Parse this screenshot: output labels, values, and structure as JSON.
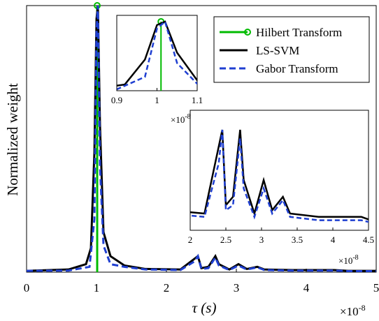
{
  "chart_data": {
    "type": "line",
    "xlabel": "τ (s)",
    "ylabel": "Normalized weight",
    "xlim": [
      0,
      5e-08
    ],
    "ylim": [
      0,
      1
    ],
    "x_ticks": [
      "0",
      "1",
      "2",
      "3",
      "4",
      "5"
    ],
    "x_exponent": "×10",
    "x_exponent_power": "-8",
    "legend": {
      "position": "top-right",
      "entries": [
        "Hilbert Transform",
        "LS-SVM",
        "Gabor Transform"
      ]
    },
    "colors": {
      "hilbert": "#00bb00",
      "lssvm": "#000000",
      "gabor": "#1f3fd1"
    },
    "series": [
      {
        "name": "Hilbert Transform",
        "style": "stem",
        "x": [
          1.01e-08
        ],
        "y": [
          1.0
        ]
      },
      {
        "name": "LS-SVM",
        "style": "solid",
        "x": [
          0,
          6e-09,
          8.5e-09,
          9.2e-09,
          9.7e-09,
          1e-08,
          1.02e-08,
          1.05e-08,
          1.1e-08,
          1.2e-08,
          1.4e-08,
          1.7e-08,
          2.2e-08,
          2.4e-08,
          2.45e-08,
          2.5e-08,
          2.6e-08,
          2.7e-08,
          2.75e-08,
          2.9e-08,
          3.03e-08,
          3.15e-08,
          3.3e-08,
          3.4e-08,
          3.8e-08,
          4.4e-08,
          4.6e-08,
          5e-08
        ],
        "y": [
          0.005,
          0.01,
          0.03,
          0.09,
          0.45,
          0.95,
          1.0,
          0.55,
          0.15,
          0.06,
          0.025,
          0.012,
          0.01,
          0.05,
          0.06,
          0.015,
          0.02,
          0.06,
          0.03,
          0.01,
          0.03,
          0.012,
          0.02,
          0.01,
          0.008,
          0.008,
          0.005,
          0.005
        ]
      },
      {
        "name": "Gabor Transform",
        "style": "dashed",
        "x": [
          0,
          6e-09,
          9e-09,
          9.7e-09,
          1e-08,
          1.02e-08,
          1.05e-08,
          1.1e-08,
          1.2e-08,
          1.4e-08,
          1.7e-08,
          2.2e-08,
          2.4e-08,
          2.45e-08,
          2.5e-08,
          2.6e-08,
          2.7e-08,
          2.75e-08,
          2.9e-08,
          3.03e-08,
          3.15e-08,
          3.3e-08,
          3.4e-08,
          3.8e-08,
          4.4e-08,
          4.6e-08,
          5e-08
        ],
        "y": [
          0.005,
          0.006,
          0.02,
          0.2,
          0.9,
          1.0,
          0.4,
          0.1,
          0.03,
          0.02,
          0.01,
          0.008,
          0.04,
          0.06,
          0.012,
          0.015,
          0.055,
          0.025,
          0.008,
          0.025,
          0.01,
          0.018,
          0.008,
          0.006,
          0.006,
          0.004,
          0.004
        ]
      }
    ],
    "insets": [
      {
        "xlim": [
          9e-09,
          1.1e-08
        ],
        "x_ticks": [
          "0.9",
          "1",
          "1.1"
        ],
        "x_exponent": "×10",
        "x_exponent_power": "-8"
      },
      {
        "xlim": [
          2e-08,
          4.5e-08
        ],
        "x_ticks": [
          "2",
          "2.5",
          "3",
          "3.5",
          "4",
          "4.5"
        ],
        "x_exponent": "×10",
        "x_exponent_power": "-8"
      }
    ]
  }
}
